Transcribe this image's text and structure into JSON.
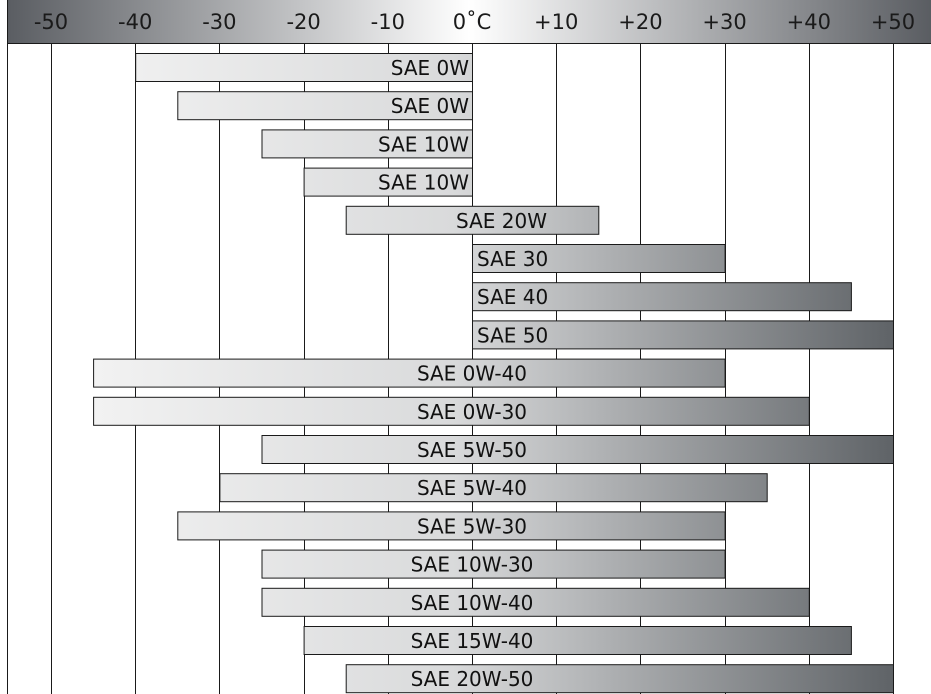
{
  "chart_data": {
    "type": "bar",
    "orientation": "horizontal-range",
    "unit": "°C",
    "x_ticks": [
      "-50",
      "-40",
      "-30",
      "-20",
      "-10",
      "0˚C",
      "+10",
      "+20",
      "+30",
      "+40",
      "+50"
    ],
    "x_tick_values": [
      -50,
      -40,
      -30,
      -20,
      -10,
      0,
      10,
      20,
      30,
      40,
      50
    ],
    "xlim": [
      -50,
      50
    ],
    "grid": true,
    "legend": "none",
    "bars": [
      {
        "label": "SAE 0W",
        "min": -40,
        "max": 0
      },
      {
        "label": "SAE 0W",
        "min": -35,
        "max": 0
      },
      {
        "label": "SAE 10W",
        "min": -25,
        "max": 0
      },
      {
        "label": "SAE 10W",
        "min": -20,
        "max": 0
      },
      {
        "label": "SAE 20W",
        "min": -15,
        "max": 15
      },
      {
        "label": "SAE 30",
        "min": 0,
        "max": 30
      },
      {
        "label": "SAE 40",
        "min": 0,
        "max": 45
      },
      {
        "label": "SAE 50",
        "min": 0,
        "max": 50
      },
      {
        "label": "SAE 0W-40",
        "min": -45,
        "max": 30
      },
      {
        "label": "SAE 0W-30",
        "min": -45,
        "max": 40
      },
      {
        "label": "SAE 5W-50",
        "min": -25,
        "max": 50
      },
      {
        "label": "SAE 5W-40",
        "min": -30,
        "max": 35
      },
      {
        "label": "SAE 5W-30",
        "min": -35,
        "max": 30
      },
      {
        "label": "SAE 10W-30",
        "min": -25,
        "max": 30
      },
      {
        "label": "SAE 10W-40",
        "min": -25,
        "max": 40
      },
      {
        "label": "SAE 15W-40",
        "min": -20,
        "max": 45
      },
      {
        "label": "SAE 20W-50",
        "min": -15,
        "max": 50
      }
    ]
  },
  "colors": {
    "header_light": "#ffffff",
    "header_dark": "#5a5d62",
    "bar_light": "#f2f2f2",
    "bar_mid": "#d9dadb",
    "bar_dark": "#5f6367",
    "grid": "#1a1a1a"
  }
}
